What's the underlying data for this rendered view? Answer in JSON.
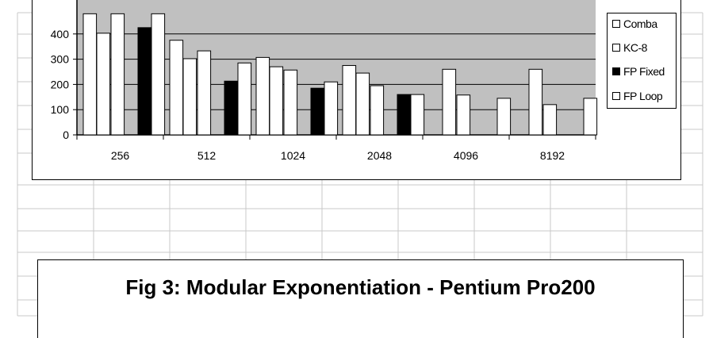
{
  "chart_data": {
    "type": "bar",
    "title": "Fig 3: Modular Exponentiation - Pentium Pro200",
    "categories": [
      "256",
      "512",
      "1024",
      "2048",
      "4096",
      "8192"
    ],
    "y_ticks": [
      "0",
      "100",
      "200",
      "300",
      "400"
    ],
    "ylim": [
      0,
      480
    ],
    "legend_position": "right",
    "series": [
      {
        "name": "",
        "values": [
          480,
          375,
          307,
          275,
          0,
          0
        ],
        "color": "#ffffff"
      },
      {
        "name": "",
        "values": [
          403,
          302,
          270,
          245,
          260,
          260
        ],
        "color": "#ffffff"
      },
      {
        "name": "Comba",
        "values": [
          480,
          333,
          257,
          195,
          158,
          120
        ],
        "color": "#ffffff"
      },
      {
        "name": "KC-8",
        "values": [
          0,
          0,
          0,
          0,
          0,
          0
        ],
        "color": "#ffffff"
      },
      {
        "name": "FP Fixed",
        "values": [
          425,
          213,
          185,
          160,
          0,
          0
        ],
        "color": "#000000"
      },
      {
        "name": "FP Loop",
        "values": [
          480,
          285,
          210,
          160,
          145,
          145
        ],
        "color": "#ffffff"
      }
    ],
    "legend": [
      {
        "label": "Comba",
        "color": "#ffffff"
      },
      {
        "label": "KC-8",
        "color": "#ffffff"
      },
      {
        "label": "FP Fixed",
        "color": "#000000"
      },
      {
        "label": "FP Loop",
        "color": "#ffffff"
      }
    ],
    "plot_background": "#c0c0c0",
    "grid": true
  }
}
